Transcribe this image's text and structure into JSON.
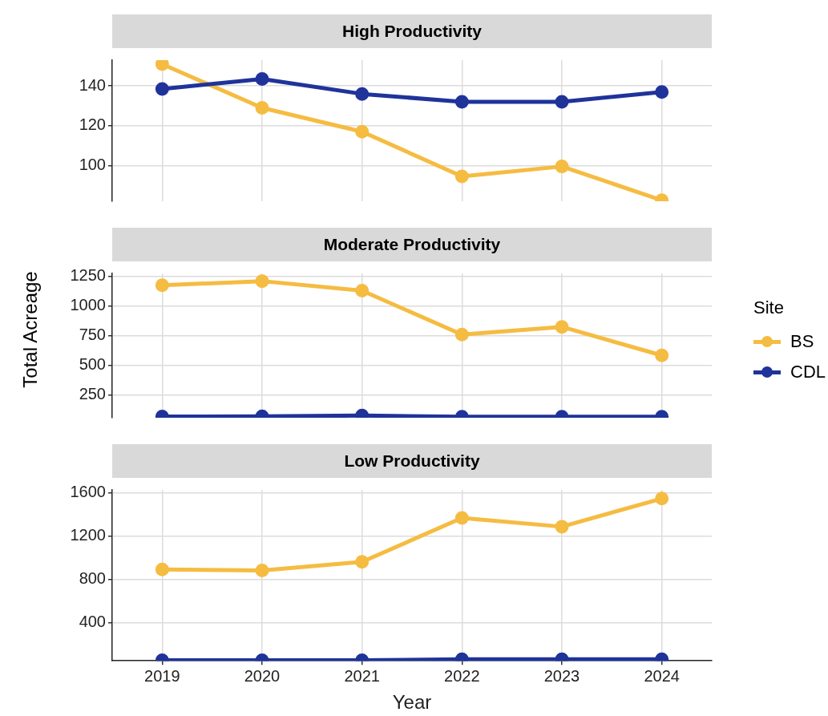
{
  "chart_data": [
    {
      "type": "line",
      "title": "High Productivity",
      "categories": [
        "2019",
        "2020",
        "2021",
        "2022",
        "2023",
        "2024"
      ],
      "ylim": [
        82,
        153
      ],
      "yticks": [
        100,
        120,
        140
      ],
      "tick_labels": "y",
      "grid": true,
      "marker": "circle",
      "legend": false,
      "series": [
        {
          "color": "#f5bc42",
          "values": [
            151,
            129,
            117,
            94.5,
            99.5,
            82.5
          ]
        },
        {
          "color": "#1f339a",
          "values": [
            138.5,
            143.5,
            136,
            132,
            132,
            137
          ]
        }
      ]
    },
    {
      "type": "line",
      "title": "Moderate Productivity",
      "ylabel": "Total Acreage",
      "legend_title": "Site",
      "legend": "right",
      "categories": [
        "2019",
        "2020",
        "2021",
        "2022",
        "2023",
        "2024"
      ],
      "ylim": [
        60,
        1275
      ],
      "yticks": [
        250,
        500,
        750,
        1000,
        1250
      ],
      "tick_labels": "y",
      "grid": true,
      "marker": "circle",
      "series": [
        {
          "name": "BS",
          "color": "#f5bc42",
          "values": [
            1175,
            1210,
            1130,
            760,
            825,
            585
          ]
        },
        {
          "name": "CDL",
          "color": "#1f339a",
          "values": [
            70,
            72,
            78,
            68,
            68,
            68
          ]
        }
      ]
    },
    {
      "type": "line",
      "title": "Low Productivity",
      "xlabel": "Year",
      "categories": [
        "2019",
        "2020",
        "2021",
        "2022",
        "2023",
        "2024"
      ],
      "ylim": [
        45,
        1625
      ],
      "yticks": [
        400,
        800,
        1200,
        1600
      ],
      "grid": true,
      "marker": "circle",
      "legend": false,
      "series": [
        {
          "color": "#f5bc42",
          "values": [
            890,
            880,
            960,
            1365,
            1285,
            1545
          ]
        },
        {
          "color": "#1f339a",
          "values": [
            50,
            50,
            50,
            60,
            60,
            60
          ]
        }
      ]
    }
  ]
}
